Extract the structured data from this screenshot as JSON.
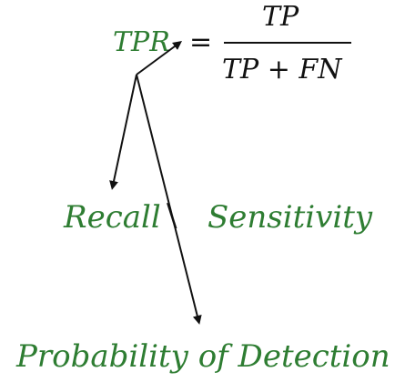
{
  "formula": {
    "lhs": "TPR",
    "equals": "=",
    "numerator": "TP",
    "denominator": "TP + FN"
  },
  "terms": {
    "recall": "Recall",
    "separator": "\\",
    "sensitivity": "Sensitivity",
    "probability_of_detection": "Probability of Detection"
  },
  "colors": {
    "term_text": "#2e7d32",
    "math_text": "#111111",
    "arrows": "#111111"
  }
}
